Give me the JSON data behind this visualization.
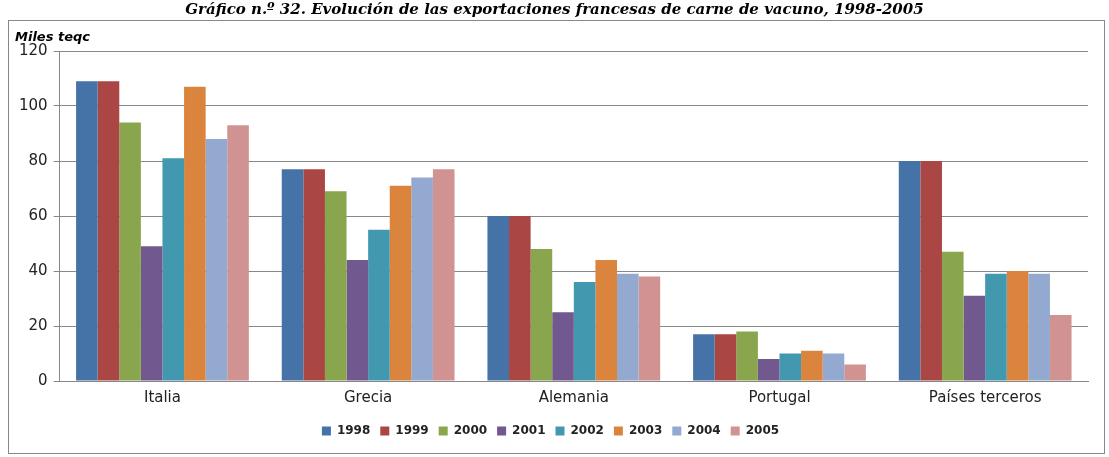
{
  "chart_data": {
    "type": "bar",
    "title": "Gráfico n.º 32. Evolución de las exportaciones francesas de carne de vacuno, 1998-2005",
    "ylabel": "Miles teqc",
    "categories": [
      "Italia",
      "Grecia",
      "Alemania",
      "Portugal",
      "Países terceros"
    ],
    "series": [
      {
        "name": "1998",
        "color": "#4572a7",
        "values": [
          109,
          77,
          60,
          17,
          80
        ]
      },
      {
        "name": "1999",
        "color": "#aa4643",
        "values": [
          109,
          77,
          60,
          17,
          80
        ]
      },
      {
        "name": "2000",
        "color": "#89a54e",
        "values": [
          94,
          69,
          48,
          18,
          47
        ]
      },
      {
        "name": "2001",
        "color": "#71588f",
        "values": [
          49,
          44,
          25,
          8,
          31
        ]
      },
      {
        "name": "2002",
        "color": "#4198af",
        "values": [
          81,
          55,
          36,
          10,
          39
        ]
      },
      {
        "name": "2003",
        "color": "#db843d",
        "values": [
          107,
          71,
          44,
          11,
          40
        ]
      },
      {
        "name": "2004",
        "color": "#93a9cf",
        "values": [
          88,
          74,
          39,
          10,
          39
        ]
      },
      {
        "name": "2005",
        "color": "#d19392",
        "values": [
          93,
          77,
          38,
          6,
          24
        ]
      }
    ],
    "ylim": [
      0,
      120
    ],
    "yticks": [
      0,
      20,
      40,
      60,
      80,
      100,
      120
    ],
    "grid": "y",
    "legend": "bottom"
  }
}
